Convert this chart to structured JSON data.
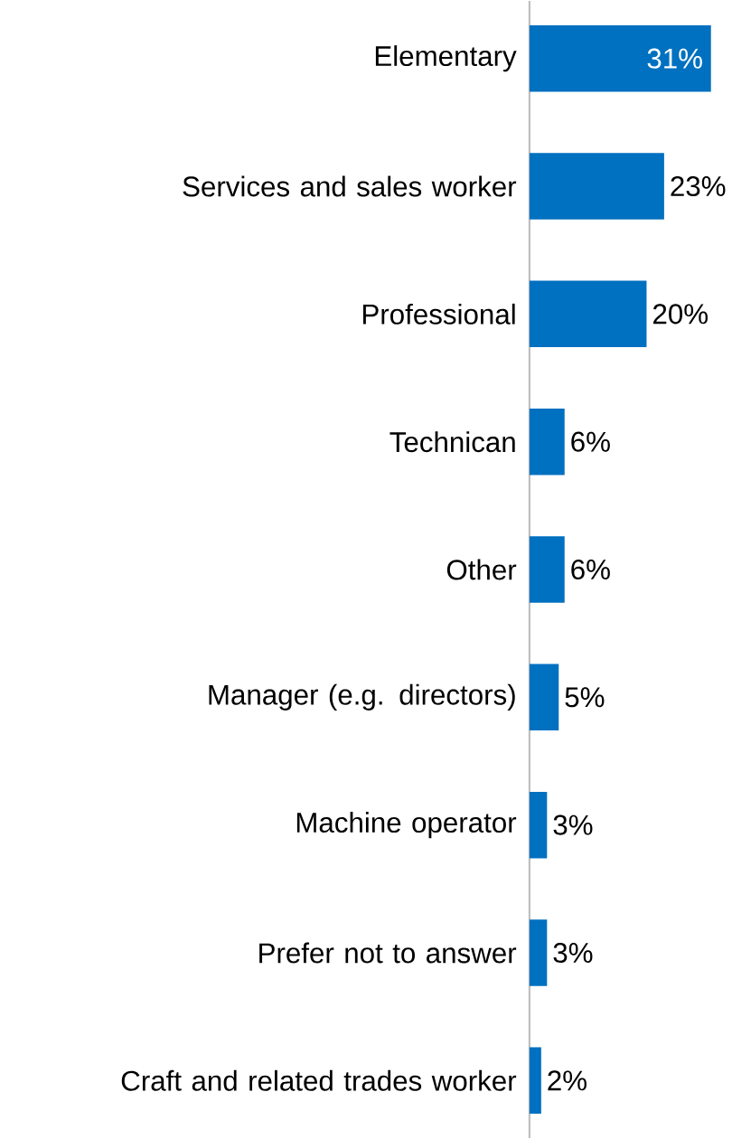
{
  "chart_data": {
    "type": "bar",
    "orientation": "horizontal",
    "categories": [
      "Elementary",
      "Services and sales worker",
      "Professional",
      "Technican",
      "Other",
      "Manager (e.g. directors)",
      "Machine operator",
      "Prefer not to answer",
      "Craft and related trades worker"
    ],
    "values": [
      31,
      23,
      20,
      6,
      6,
      5,
      3,
      3,
      2
    ],
    "value_labels": [
      "31%",
      "23%",
      "20%",
      "6%",
      "6%",
      "5%",
      "3%",
      "3%",
      "2%"
    ],
    "color": "#0070c0"
  }
}
